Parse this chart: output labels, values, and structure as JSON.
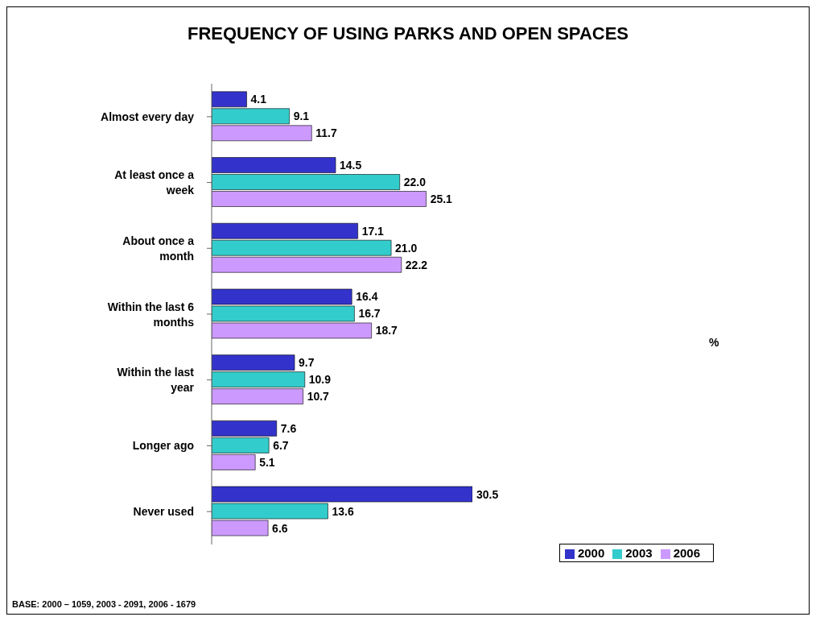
{
  "chart_data": {
    "type": "bar",
    "orientation": "horizontal",
    "title": "FREQUENCY OF USING PARKS AND OPEN SPACES",
    "categories": [
      "Almost every day",
      "At least once a week",
      "About once a month",
      "Within the last 6 months",
      "Within the last year",
      "Longer ago",
      "Never used"
    ],
    "series": [
      {
        "name": "2000",
        "color": "#3333cc",
        "values": [
          4.1,
          14.5,
          17.1,
          16.4,
          9.7,
          7.6,
          30.5
        ],
        "value_labels": [
          "4.1",
          "14.5",
          "17.1",
          "16.4",
          "9.7",
          "7.6",
          "30.5"
        ]
      },
      {
        "name": "2003",
        "color": "#33cccc",
        "values": [
          9.1,
          22.0,
          21.0,
          16.7,
          10.9,
          6.7,
          13.6
        ],
        "value_labels": [
          "9.1",
          "22.0",
          "21.0",
          "16.7",
          "10.9",
          "6.7",
          "13.6"
        ]
      },
      {
        "name": "2006",
        "color": "#cc99ff",
        "values": [
          11.7,
          25.1,
          22.2,
          18.7,
          10.7,
          5.1,
          6.6
        ],
        "value_labels": [
          "11.7",
          "25.1",
          "22.2",
          "18.7",
          "10.7",
          "5.1",
          "6.6"
        ]
      }
    ],
    "tick_labels": "y",
    "grid": false,
    "legend": "bottom right",
    "annotations": [
      "%",
      "BASE: 2000 – 1059, 2003 - 2091, 2006 - 1679"
    ]
  }
}
